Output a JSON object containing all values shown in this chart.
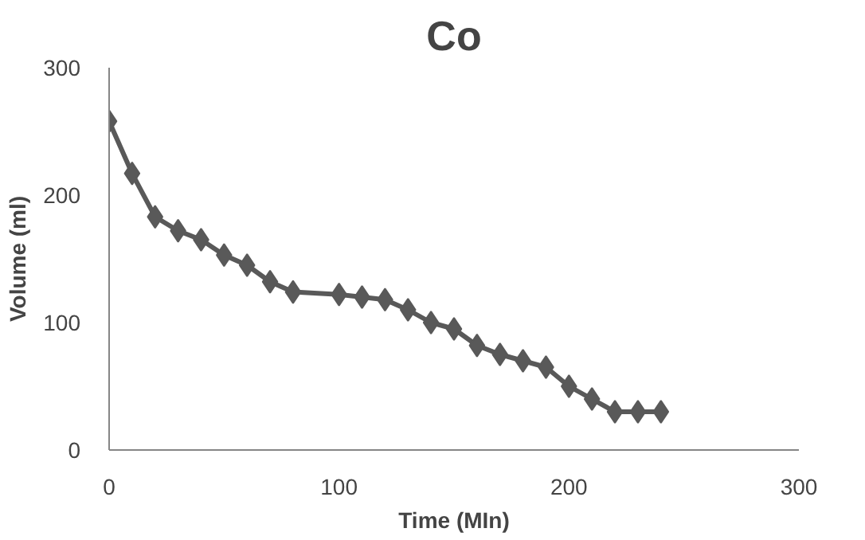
{
  "chart_data": {
    "type": "line",
    "title": "Co",
    "xlabel": "Time (MIn)",
    "ylabel": "Volume (ml)",
    "x": [
      0,
      10,
      20,
      30,
      40,
      50,
      60,
      70,
      80,
      100,
      110,
      120,
      130,
      140,
      150,
      160,
      170,
      180,
      190,
      200,
      210,
      220,
      230,
      240
    ],
    "series": [
      {
        "color": "#595959",
        "values": [
          258,
          217,
          183,
          172,
          165,
          153,
          145,
          132,
          124,
          122,
          120,
          118,
          110,
          100,
          95,
          82,
          75,
          70,
          65,
          50,
          40,
          30,
          30,
          30
        ]
      }
    ],
    "xlim": [
      0,
      300
    ],
    "xticks": [
      0,
      100,
      200,
      300
    ],
    "ylim": [
      0,
      300
    ],
    "yticks": [
      0,
      100,
      200,
      300
    ],
    "grid": false,
    "marker": "diamond",
    "line_style": "solid"
  }
}
